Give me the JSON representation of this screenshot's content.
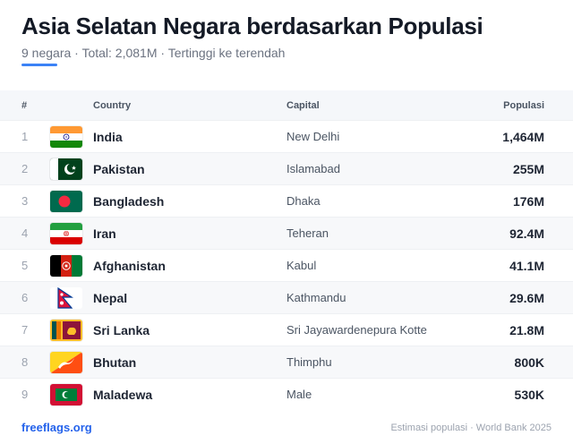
{
  "header": {
    "title": "Asia Selatan Negara berdasarkan Populasi",
    "subtitle": "9 negara · Total: 2,081M · Tertinggi ke terendah"
  },
  "colors": {
    "accent": "#3b82f6",
    "brand_link": "#2563eb"
  },
  "table": {
    "columns": {
      "num": "#",
      "country": "Country",
      "capital": "Capital",
      "population": "Populasi"
    },
    "rows": [
      {
        "rank": "1",
        "flag": "india-flag-icon",
        "country": "India",
        "capital": "New Delhi",
        "population": "1,464M"
      },
      {
        "rank": "2",
        "flag": "pakistan-flag-icon",
        "country": "Pakistan",
        "capital": "Islamabad",
        "population": "255M"
      },
      {
        "rank": "3",
        "flag": "bangladesh-flag-icon",
        "country": "Bangladesh",
        "capital": "Dhaka",
        "population": "176M"
      },
      {
        "rank": "4",
        "flag": "iran-flag-icon",
        "country": "Iran",
        "capital": "Teheran",
        "population": "92.4M"
      },
      {
        "rank": "5",
        "flag": "afghanistan-flag-icon",
        "country": "Afghanistan",
        "capital": "Kabul",
        "population": "41.1M"
      },
      {
        "rank": "6",
        "flag": "nepal-flag-icon",
        "country": "Nepal",
        "capital": "Kathmandu",
        "population": "29.6M"
      },
      {
        "rank": "7",
        "flag": "sri-lanka-flag-icon",
        "country": "Sri Lanka",
        "capital": "Sri Jayawardenepura Kotte",
        "population": "21.8M"
      },
      {
        "rank": "8",
        "flag": "bhutan-flag-icon",
        "country": "Bhutan",
        "capital": "Thimphu",
        "population": "800K"
      },
      {
        "rank": "9",
        "flag": "maldives-flag-icon",
        "country": "Maladewa",
        "capital": "Male",
        "population": "530K"
      }
    ]
  },
  "footer": {
    "brand": "freeflags.org",
    "source": "Estimasi populasi · World Bank 2025"
  }
}
